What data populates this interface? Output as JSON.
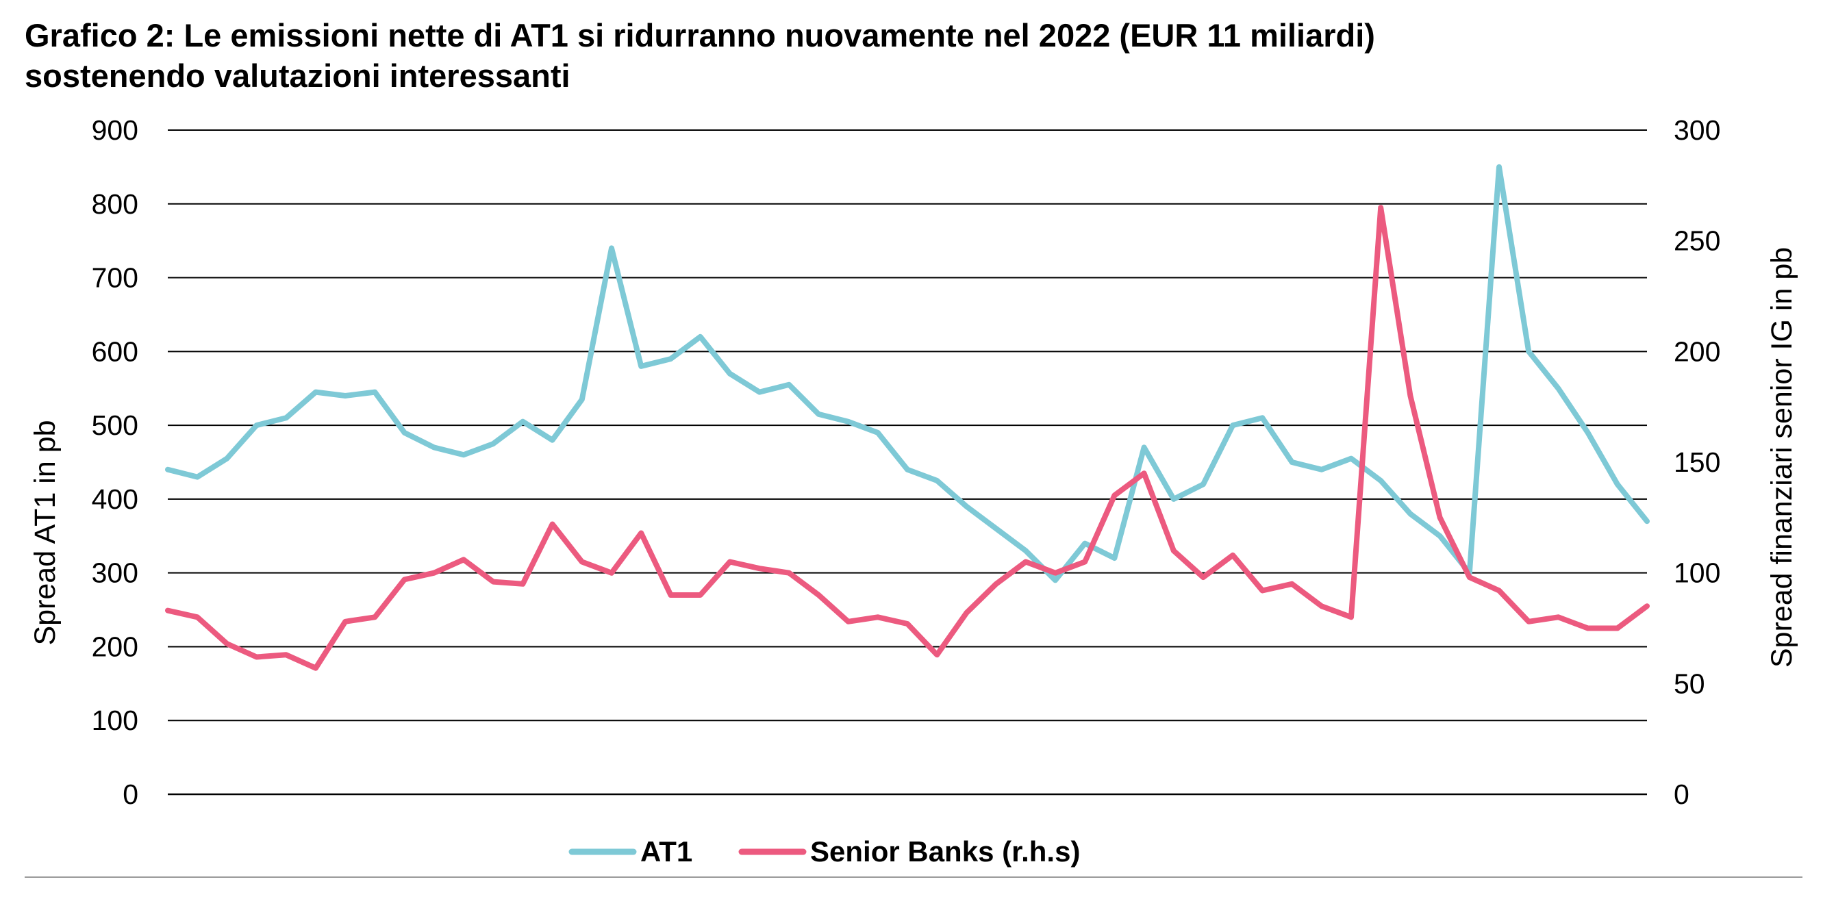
{
  "chart_data": {
    "type": "line",
    "title": [
      "Grafico 2: Le emissioni nette di AT1 si ridurranno nuovamente nel 2022 (EUR 11 miliardi)",
      "sostenendo valutazioni interessanti"
    ],
    "ylabel": "Spread AT1 in pb",
    "y2label": "Spread finanziari senior IG in pb",
    "ylim": [
      0,
      900
    ],
    "y2lim": [
      0,
      300
    ],
    "yticks": [
      "0",
      "100",
      "200",
      "300",
      "400",
      "500",
      "600",
      "700",
      "800",
      "900"
    ],
    "y2ticks": [
      "0",
      "50",
      "100",
      "150",
      "200",
      "250",
      "300"
    ],
    "grid": "horizontal",
    "legend_position": "bottom-center",
    "x": [
      0,
      10,
      20,
      30,
      40,
      50,
      60,
      70,
      80,
      90,
      100,
      110,
      120,
      130,
      140,
      150,
      160,
      170,
      180,
      190,
      200,
      210,
      220,
      230,
      240,
      250,
      260,
      270,
      280,
      290,
      300,
      310,
      320,
      330,
      340,
      350,
      360,
      370,
      380,
      390,
      400,
      410,
      420,
      430,
      440,
      450,
      460,
      470,
      480,
      490,
      500
    ],
    "series": [
      {
        "name": "AT1",
        "axis": "left",
        "color": "#7ec9d6",
        "values": [
          440,
          430,
          455,
          500,
          510,
          545,
          540,
          545,
          490,
          470,
          460,
          475,
          505,
          480,
          535,
          740,
          580,
          590,
          620,
          570,
          545,
          555,
          515,
          505,
          490,
          440,
          425,
          390,
          360,
          330,
          290,
          340,
          320,
          470,
          400,
          420,
          500,
          510,
          450,
          440,
          455,
          425,
          380,
          350,
          300,
          850,
          600,
          550,
          490,
          420,
          370
        ]
      },
      {
        "name": "Senior Banks (r.h.s)",
        "axis": "right",
        "color": "#ec5a7f",
        "values": [
          83,
          80,
          68,
          62,
          63,
          57,
          78,
          80,
          97,
          100,
          106,
          96,
          95,
          122,
          105,
          100,
          118,
          90,
          90,
          105,
          102,
          100,
          90,
          78,
          80,
          77,
          63,
          82,
          95,
          105,
          100,
          105,
          135,
          145,
          110,
          98,
          108,
          92,
          95,
          85,
          80,
          265,
          180,
          125,
          98,
          92,
          78,
          80,
          75,
          75,
          85
        ]
      }
    ]
  }
}
